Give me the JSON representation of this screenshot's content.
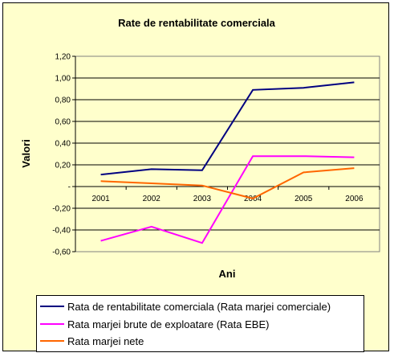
{
  "chart_data": {
    "type": "line",
    "title": "Rate de rentabilitate comerciala",
    "xlabel": "Ani",
    "ylabel": "Valori",
    "categories": [
      "2001",
      "2002",
      "2003",
      "2004",
      "2005",
      "2006"
    ],
    "ylim": [
      -0.6,
      1.2
    ],
    "yticks": [
      "1,20",
      "1,00",
      "0,80",
      "0,60",
      "0,40",
      "0,20",
      "-",
      "-0,20",
      "-0,40",
      "-0,60"
    ],
    "grid": true,
    "legend_position": "bottom",
    "background_color": "#ffffcc",
    "plot_background_color": "#ffffcc",
    "series": [
      {
        "name": "Rata de rentabilitate comerciala (Rata marjei comerciale)",
        "color": "#000080",
        "values": [
          0.11,
          0.16,
          0.15,
          0.89,
          0.91,
          0.96
        ]
      },
      {
        "name": "Rata marjei brute de exploatare (Rata EBE)",
        "color": "#ff00ff",
        "values": [
          -0.5,
          -0.37,
          -0.52,
          0.28,
          0.28,
          0.27
        ]
      },
      {
        "name": "Rata marjei  nete",
        "color": "#ff6600",
        "values": [
          0.05,
          0.03,
          0.01,
          -0.11,
          0.13,
          0.17
        ]
      }
    ]
  }
}
